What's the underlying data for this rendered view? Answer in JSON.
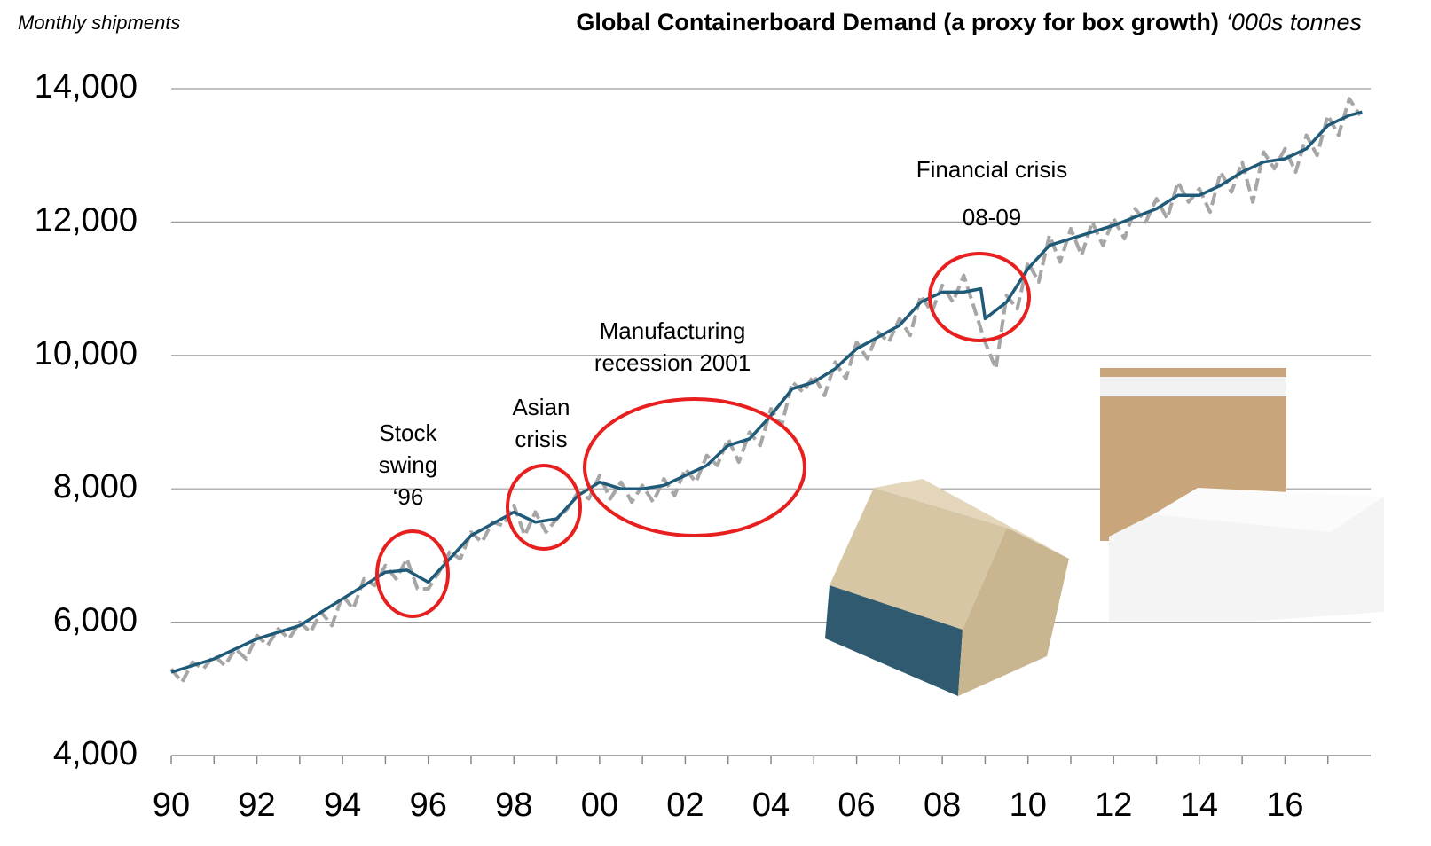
{
  "chart_data": {
    "type": "line",
    "note": "Monthly shipments",
    "title": "Global Containerboard Demand (a proxy for box growth)",
    "units": "‘000s tonnes",
    "annotations": [
      {
        "lines": [
          "Stock",
          "swing",
          "‘96"
        ]
      },
      {
        "lines": [
          "Asian",
          "crisis"
        ]
      },
      {
        "lines": [
          "Manufacturing",
          "recession 2001"
        ]
      },
      {
        "lines": [
          "Financial crisis",
          "08-09"
        ]
      }
    ],
    "xlim": [
      1990,
      2018
    ],
    "xticks": [
      {
        "value": 1990,
        "label": "90"
      },
      {
        "value": 1992,
        "label": "92"
      },
      {
        "value": 1994,
        "label": "94"
      },
      {
        "value": 1996,
        "label": "96"
      },
      {
        "value": 1998,
        "label": "98"
      },
      {
        "value": 2000,
        "label": "00"
      },
      {
        "value": 2002,
        "label": "02"
      },
      {
        "value": 2004,
        "label": "04"
      },
      {
        "value": 2006,
        "label": "06"
      },
      {
        "value": 2008,
        "label": "08"
      },
      {
        "value": 2010,
        "label": "10"
      },
      {
        "value": 2012,
        "label": "12"
      },
      {
        "value": 2014,
        "label": "14"
      },
      {
        "value": 2016,
        "label": "16"
      }
    ],
    "xminorticks": [
      1991,
      1993,
      1995,
      1997,
      1999,
      2001,
      2003,
      2005,
      2007,
      2009,
      2011,
      2013,
      2015,
      2017
    ],
    "ylim": [
      4000,
      14000
    ],
    "yticks": [
      {
        "value": 4000,
        "label": "4,000"
      },
      {
        "value": 6000,
        "label": "6,000"
      },
      {
        "value": 8000,
        "label": "8,000"
      },
      {
        "value": 10000,
        "label": "10,000"
      },
      {
        "value": 12000,
        "label": "12,000"
      },
      {
        "value": 14000,
        "label": "14,000"
      }
    ],
    "grid": true,
    "series": [
      {
        "color": "#a6a6a6",
        "dashed": true,
        "x": [
          1990,
          1990.25,
          1990.5,
          1990.75,
          1991,
          1991.25,
          1991.5,
          1991.75,
          1992,
          1992.25,
          1992.5,
          1992.75,
          1993,
          1993.25,
          1993.5,
          1993.75,
          1994,
          1994.25,
          1994.5,
          1994.75,
          1995,
          1995.25,
          1995.5,
          1995.75,
          1996,
          1996.25,
          1996.5,
          1996.75,
          1997,
          1997.25,
          1997.5,
          1997.75,
          1998,
          1998.25,
          1998.5,
          1998.75,
          1999,
          1999.25,
          1999.5,
          1999.75,
          2000,
          2000.25,
          2000.5,
          2000.75,
          2001,
          2001.25,
          2001.5,
          2001.75,
          2002,
          2002.25,
          2002.5,
          2002.75,
          2003,
          2003.25,
          2003.5,
          2003.75,
          2004,
          2004.25,
          2004.5,
          2004.75,
          2005,
          2005.25,
          2005.5,
          2005.75,
          2006,
          2006.25,
          2006.5,
          2006.75,
          2007,
          2007.25,
          2007.5,
          2007.75,
          2008,
          2008.25,
          2008.5,
          2008.75,
          2009,
          2009.25,
          2009.5,
          2009.75,
          2010,
          2010.25,
          2010.5,
          2010.75,
          2011,
          2011.25,
          2011.5,
          2011.75,
          2012,
          2012.25,
          2012.5,
          2012.75,
          2013,
          2013.25,
          2013.5,
          2013.75,
          2014,
          2014.25,
          2014.5,
          2014.75,
          2015,
          2015.25,
          2015.5,
          2015.75,
          2016,
          2016.25,
          2016.5,
          2016.75,
          2017,
          2017.25,
          2017.5,
          2017.75
        ],
        "values": [
          5300,
          5100,
          5400,
          5300,
          5500,
          5350,
          5600,
          5450,
          5800,
          5650,
          5900,
          5750,
          6000,
          5850,
          6150,
          5950,
          6400,
          6200,
          6650,
          6550,
          6850,
          6650,
          6950,
          6500,
          6500,
          6750,
          7050,
          6950,
          7350,
          7200,
          7500,
          7450,
          7750,
          7300,
          7650,
          7350,
          7550,
          7700,
          7950,
          7850,
          8200,
          7850,
          8100,
          7800,
          8050,
          7800,
          8150,
          7900,
          8300,
          8100,
          8500,
          8350,
          8750,
          8400,
          8850,
          8650,
          9200,
          8950,
          9600,
          9450,
          9700,
          9400,
          9900,
          9650,
          10200,
          9950,
          10350,
          10200,
          10550,
          10300,
          10900,
          10650,
          11050,
          10800,
          11200,
          10700,
          10200,
          9800,
          10900,
          10700,
          11400,
          11100,
          11800,
          11400,
          11900,
          11500,
          12000,
          11650,
          12050,
          11750,
          12200,
          12000,
          12350,
          12050,
          12600,
          12300,
          12500,
          12150,
          12750,
          12450,
          12900,
          12300,
          13050,
          12800,
          13100,
          12750,
          13300,
          13000,
          13600,
          13300,
          13850,
          13600
        ]
      },
      {
        "color": "#1f5a78",
        "dashed": false,
        "x": [
          1990,
          1991,
          1992,
          1993,
          1994,
          1995,
          1995.5,
          1996,
          1996.5,
          1997,
          1998,
          1998.5,
          1999,
          1999.5,
          2000,
          2000.5,
          2001,
          2001.5,
          2002,
          2002.5,
          2003,
          2003.5,
          2004,
          2004.5,
          2005,
          2005.5,
          2006,
          2007,
          2007.5,
          2008,
          2008.5,
          2008.9,
          2009,
          2009.5,
          2010,
          2010.5,
          2011,
          2012,
          2013,
          2013.5,
          2014,
          2014.5,
          2015,
          2015.5,
          2016,
          2016.5,
          2017,
          2017.5,
          2017.8
        ],
        "values": [
          5250,
          5450,
          5750,
          5950,
          6350,
          6750,
          6780,
          6600,
          6950,
          7300,
          7650,
          7500,
          7550,
          7900,
          8100,
          8000,
          8000,
          8050,
          8200,
          8350,
          8650,
          8750,
          9100,
          9500,
          9600,
          9800,
          10100,
          10450,
          10800,
          10950,
          10950,
          11000,
          10550,
          10800,
          11300,
          11650,
          11750,
          11950,
          12200,
          12400,
          12400,
          12550,
          12750,
          12900,
          12950,
          13100,
          13450,
          13600,
          13650
        ]
      }
    ]
  }
}
